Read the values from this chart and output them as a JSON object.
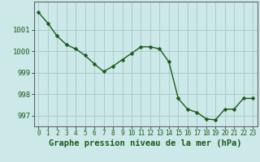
{
  "x": [
    0,
    1,
    2,
    3,
    4,
    5,
    6,
    7,
    8,
    9,
    10,
    11,
    12,
    13,
    14,
    15,
    16,
    17,
    18,
    19,
    20,
    21,
    22,
    23
  ],
  "y": [
    1001.8,
    1001.3,
    1000.7,
    1000.3,
    1000.1,
    999.8,
    999.4,
    999.05,
    999.3,
    999.6,
    999.9,
    1000.2,
    1000.2,
    1000.1,
    999.5,
    997.8,
    997.3,
    997.15,
    996.85,
    996.8,
    997.3,
    997.3,
    997.8,
    997.8
  ],
  "line_color": "#1a5c1a",
  "marker": "D",
  "marker_size": 2.5,
  "bg_color": "#cce8e8",
  "grid_color": "#aacccc",
  "xlabel": "Graphe pression niveau de la mer (hPa)",
  "xlabel_fontsize": 7.5,
  "xtick_labels": [
    "0",
    "1",
    "2",
    "3",
    "4",
    "5",
    "6",
    "7",
    "8",
    "9",
    "10",
    "11",
    "12",
    "13",
    "14",
    "15",
    "16",
    "17",
    "18",
    "19",
    "20",
    "21",
    "22",
    "23"
  ],
  "ylim": [
    996.5,
    1002.3
  ],
  "yticks": [
    997,
    998,
    999,
    1000,
    1001
  ],
  "ytick_fontsize": 6.5,
  "xtick_fontsize": 5.5,
  "axis_color": "#666666"
}
